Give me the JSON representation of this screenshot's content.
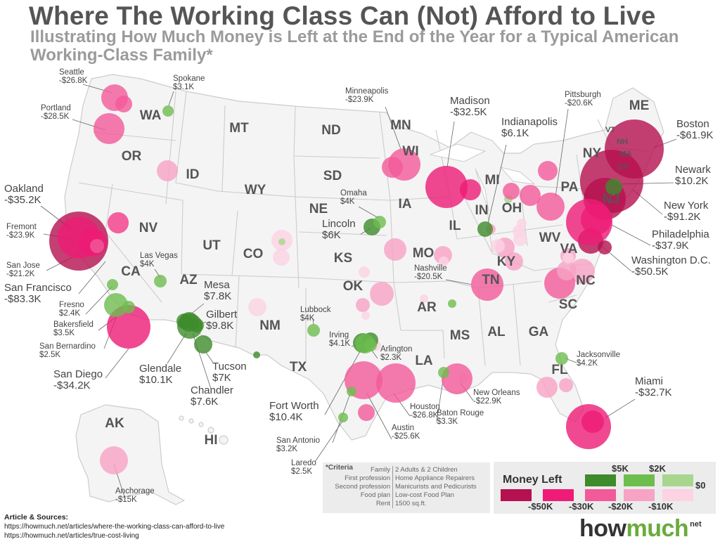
{
  "title": "Where The Working Class Can (Not) Afford to Live",
  "subtitle": "Illustrating How Much Money is Left at the End of the Year for a Typical American Working-Class Family*",
  "colors": {
    "land": "#f4f4f4",
    "border": "#cccccc",
    "state_label": "#555555",
    "city_label": "#444444",
    "plus_5k": "#3d8b2a",
    "plus_2k": "#6ebd4f",
    "plus_0": "#a8d68f",
    "minus_50k": "#b5104f",
    "minus_30k": "#ee1c76",
    "minus_20k": "#f25a9a",
    "minus_10k": "#f7a3c4",
    "minus_0": "#fbd3e2"
  },
  "states": [
    "WA",
    "OR",
    "CA",
    "NV",
    "ID",
    "MT",
    "WY",
    "UT",
    "AZ",
    "CO",
    "NM",
    "ND",
    "SD",
    "NE",
    "KS",
    "OK",
    "TX",
    "MN",
    "IA",
    "MO",
    "AR",
    "LA",
    "WI",
    "IL",
    "MI",
    "IN",
    "OH",
    "KY",
    "TN",
    "MS",
    "AL",
    "GA",
    "FL",
    "SC",
    "NC",
    "VA",
    "WV",
    "PA",
    "NY",
    "VT",
    "NH",
    "MA",
    "CT",
    "NJ",
    "ME",
    "AK",
    "HI"
  ],
  "cities": [
    {
      "name": "Seattle",
      "value": "-$26.8K",
      "amount": -26.8,
      "color": "minus_20k"
    },
    {
      "name": "Portland",
      "value": "-$28.5K",
      "amount": -28.5,
      "color": "minus_20k"
    },
    {
      "name": "Spokane",
      "value": "$3.1K",
      "amount": 3.1,
      "color": "plus_2k"
    },
    {
      "name": "Oakland",
      "value": "-$35.2K",
      "amount": -35.2,
      "color": "minus_30k"
    },
    {
      "name": "Fremont",
      "value": "-$23.9K",
      "amount": -23.9,
      "color": "minus_20k"
    },
    {
      "name": "San Jose",
      "value": "-$21.2K",
      "amount": -21.2,
      "color": "minus_20k"
    },
    {
      "name": "San Francisco",
      "value": "-$83.3K",
      "amount": -83.3,
      "color": "minus_50k"
    },
    {
      "name": "Fresno",
      "value": "$2.4K",
      "amount": 2.4,
      "color": "plus_2k"
    },
    {
      "name": "Bakersfield",
      "value": "$3.5K",
      "amount": 3.5,
      "color": "plus_2k"
    },
    {
      "name": "San Bernardino",
      "value": "$2.5K",
      "amount": 2.5,
      "color": "plus_2k"
    },
    {
      "name": "San Diego",
      "value": "-$34.2K",
      "amount": -34.2,
      "color": "minus_30k"
    },
    {
      "name": "Las Vegas",
      "value": "$4K",
      "amount": 4,
      "color": "plus_2k"
    },
    {
      "name": "Mesa",
      "value": "$7.8K",
      "amount": 7.8,
      "color": "plus_5k"
    },
    {
      "name": "Gilbert",
      "value": "$9.8K",
      "amount": 9.8,
      "color": "plus_5k"
    },
    {
      "name": "Glendale",
      "value": "$10.1K",
      "amount": 10.1,
      "color": "plus_5k"
    },
    {
      "name": "Tucson",
      "value": "$7K",
      "amount": 7,
      "color": "plus_5k"
    },
    {
      "name": "Chandler",
      "value": "$7.6K",
      "amount": 7.6,
      "color": "plus_5k"
    },
    {
      "name": "Minneapolis",
      "value": "-$23.9K",
      "amount": -23.9,
      "color": "minus_20k"
    },
    {
      "name": "Omaha",
      "value": "$4K",
      "amount": 4,
      "color": "plus_2k"
    },
    {
      "name": "Lincoln",
      "value": "$6K",
      "amount": 6,
      "color": "plus_5k"
    },
    {
      "name": "Lubbock",
      "value": "$4K",
      "amount": 4,
      "color": "plus_2k"
    },
    {
      "name": "Irving",
      "value": "$4.1K",
      "amount": 4.1,
      "color": "plus_2k"
    },
    {
      "name": "Arlington",
      "value": "$2.3K",
      "amount": 2.3,
      "color": "plus_2k"
    },
    {
      "name": "Fort Worth",
      "value": "$10.4K",
      "amount": 10.4,
      "color": "plus_5k"
    },
    {
      "name": "San Antonio",
      "value": "$3.2K",
      "amount": 3.2,
      "color": "plus_2k"
    },
    {
      "name": "Laredo",
      "value": "$2.5K",
      "amount": 2.5,
      "color": "plus_2k"
    },
    {
      "name": "Houston",
      "value": "-$26.8K",
      "amount": -26.8,
      "color": "minus_20k"
    },
    {
      "name": "Austin",
      "value": "-$25.6K",
      "amount": -25.6,
      "color": "minus_20k"
    },
    {
      "name": "Madison",
      "value": "-$32.5K",
      "amount": -32.5,
      "color": "minus_30k"
    },
    {
      "name": "Indianapolis",
      "value": "$6.1K",
      "amount": 6.1,
      "color": "plus_5k"
    },
    {
      "name": "Nashville",
      "value": "-$20.5K",
      "amount": -20.5,
      "color": "minus_20k"
    },
    {
      "name": "New Orleans",
      "value": "-$22.9K",
      "amount": -22.9,
      "color": "minus_20k"
    },
    {
      "name": "Baton Rouge",
      "value": "$3.3K",
      "amount": 3.3,
      "color": "plus_2k"
    },
    {
      "name": "Jacksonville",
      "value": "$4.2K",
      "amount": 4.2,
      "color": "plus_2k"
    },
    {
      "name": "Miami",
      "value": "-$32.7K",
      "amount": -32.7,
      "color": "minus_30k"
    },
    {
      "name": "Pittsburgh",
      "value": "-$20.6K",
      "amount": -20.6,
      "color": "minus_20k"
    },
    {
      "name": "Boston",
      "value": "-$61.9K",
      "amount": -61.9,
      "color": "minus_50k"
    },
    {
      "name": "Newark",
      "value": "$10.2K",
      "amount": 10.2,
      "color": "plus_5k"
    },
    {
      "name": "New York",
      "value": "-$91.2K",
      "amount": -91.2,
      "color": "minus_50k"
    },
    {
      "name": "Philadelphia",
      "value": "-$37.9K",
      "amount": -37.9,
      "color": "minus_30k"
    },
    {
      "name": "Washington D.C.",
      "value": "-$50.5K",
      "amount": -50.5,
      "color": "minus_50k"
    },
    {
      "name": "Anchorage",
      "value": "-$15K",
      "amount": -15,
      "color": "minus_10k"
    }
  ],
  "criteria": {
    "heading": "*Criteria",
    "rows": [
      {
        "key": "Family",
        "value": "2 Adults & 2 Children"
      },
      {
        "key": "First profession",
        "value": "Home Appliance Repairers"
      },
      {
        "key": "Second profession",
        "value": "Manicurists and Pedicurists"
      },
      {
        "key": "Food plan",
        "value": "Low-cost Food Plan"
      },
      {
        "key": "Rent",
        "value": "1500 sq.ft."
      }
    ]
  },
  "legend": {
    "title": "Money Left",
    "positive_labels": [
      "$5K",
      "$2K",
      "$0"
    ],
    "negative_labels": [
      "-$50K",
      "-$30K",
      "-$20K",
      "-$10K"
    ]
  },
  "sources": {
    "heading": "Article & Sources:",
    "links": [
      "https://howmuch.net/articles/where-the-working-class-can-afford-to-live",
      "https://howmuch.net/articles/true-cost-living"
    ]
  },
  "logo": {
    "part1": "how",
    "part2": "much",
    "suffix": "net"
  }
}
